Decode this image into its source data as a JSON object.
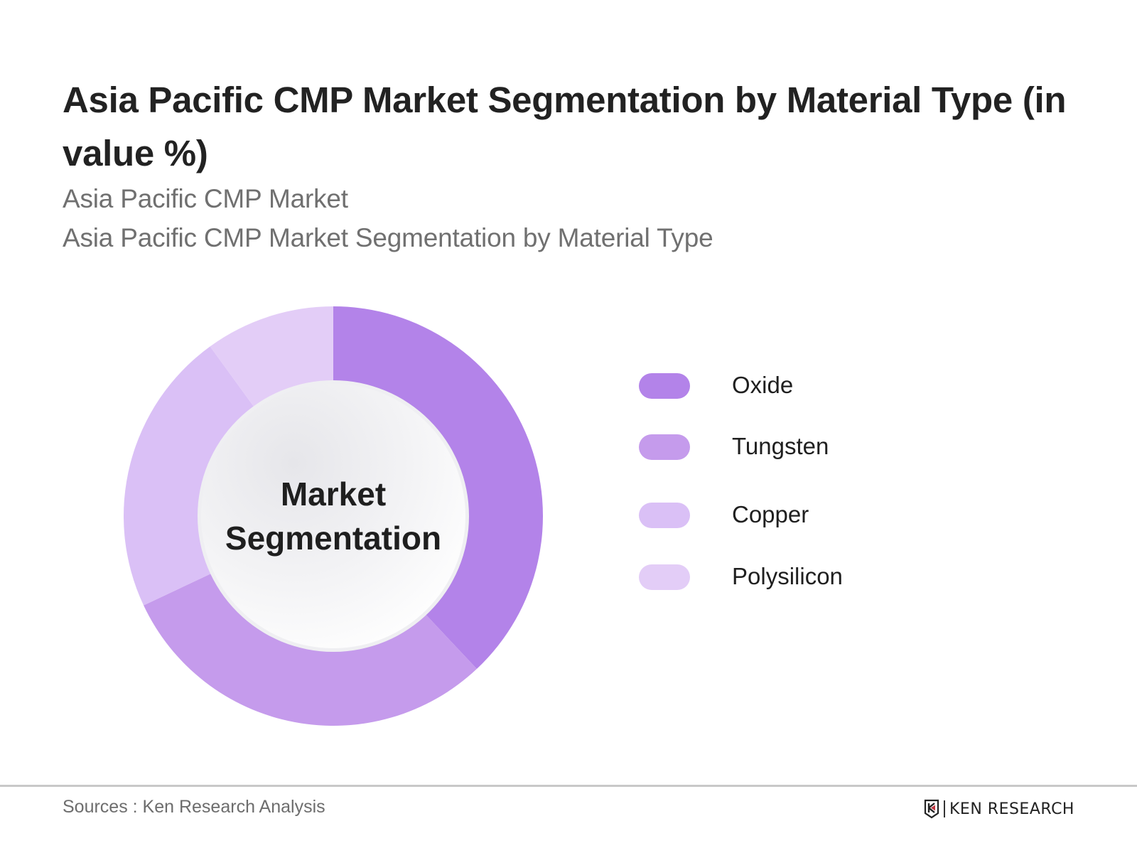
{
  "header": {
    "title": "Asia Pacific CMP Market Segmentation by Material Type (in value %)",
    "subtitle_1": "Asia Pacific CMP Market",
    "subtitle_2": "Asia Pacific CMP Market Segmentation by Material Type"
  },
  "donut": {
    "center_line_1": "Market",
    "center_line_2": "Segmentation"
  },
  "legend": [
    {
      "label": "Oxide",
      "color": "#B383E9"
    },
    {
      "label": "Tungsten",
      "color": "#C59BEC"
    },
    {
      "label": "Copper",
      "color": "#DAC0F6"
    },
    {
      "label": "Polysilicon",
      "color": "#E3CDF7"
    }
  ],
  "footer": {
    "sources": "Sources : Ken Research Analysis",
    "brand": "KEN RESEARCH",
    "brand_accent": "#C0343F"
  },
  "chart_data": {
    "type": "pie",
    "variant": "donut",
    "title": "Asia Pacific CMP Market Segmentation by Material Type (in value %)",
    "subtitle": [
      "Asia Pacific CMP Market",
      "Asia Pacific CMP Market Segmentation by Material Type"
    ],
    "center_label": "Market Segmentation",
    "categories": [
      "Oxide",
      "Tungsten",
      "Copper",
      "Polysilicon"
    ],
    "values": [
      38,
      30,
      22,
      10
    ],
    "unit": "%",
    "colors": [
      "#B383E9",
      "#C59BEC",
      "#DAC0F6",
      "#E3CDF7"
    ],
    "start_angle": "12 o'clock, clockwise",
    "data_labels": false,
    "legend_position": "right",
    "source": "Sources : Ken Research Analysis"
  }
}
